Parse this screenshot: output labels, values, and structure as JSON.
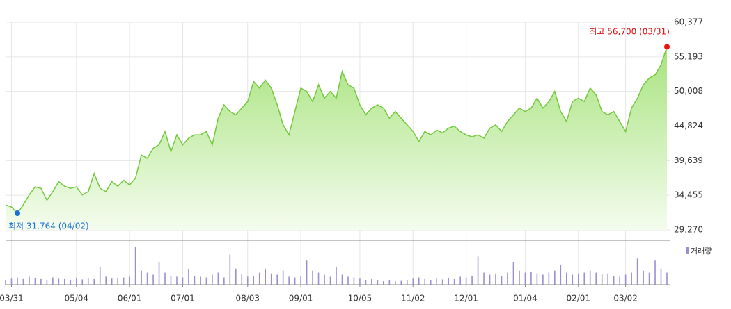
{
  "chart_data": {
    "type": "area",
    "values": [
      33000,
      32700,
      31764,
      33000,
      34500,
      35700,
      35500,
      33700,
      35000,
      36500,
      35800,
      35500,
      35700,
      34500,
      35000,
      37700,
      35500,
      35000,
      36500,
      35800,
      36700,
      36000,
      37000,
      40500,
      40000,
      41500,
      42000,
      44000,
      41000,
      43500,
      42000,
      43000,
      43500,
      43500,
      44000,
      42000,
      46000,
      48000,
      47000,
      46500,
      47500,
      48500,
      51500,
      50500,
      51700,
      50500,
      48000,
      45000,
      43500,
      47000,
      50500,
      50000,
      48500,
      51000,
      49000,
      50000,
      49000,
      53000,
      51000,
      50500,
      48000,
      46500,
      47500,
      48000,
      47500,
      46000,
      47000,
      46000,
      45000,
      44000,
      42500,
      44000,
      43500,
      44200,
      43800,
      44500,
      44800,
      44000,
      43500,
      43200,
      43500,
      43000,
      44500,
      45000,
      44000,
      45500,
      46500,
      47500,
      47000,
      47500,
      49000,
      47500,
      48500,
      50000,
      47000,
      45500,
      48500,
      49000,
      48500,
      50500,
      49500,
      47000,
      46500,
      47000,
      45500,
      44000,
      47500,
      49000,
      51000,
      52000,
      52500,
      54000,
      56700
    ],
    "color": "#72c93c",
    "ylim": [
      29270,
      60377
    ],
    "yticks": [
      {
        "value": 60377,
        "label": "60,377"
      },
      {
        "value": 55193,
        "label": "55,193"
      },
      {
        "value": 50008,
        "label": "50,008"
      },
      {
        "value": 44824,
        "label": "44,824"
      },
      {
        "value": 39639,
        "label": "39,639"
      },
      {
        "value": 34455,
        "label": "34,455"
      },
      {
        "value": 29270,
        "label": "29,270"
      }
    ],
    "xticks": [
      {
        "value": 1,
        "label": "03/31"
      },
      {
        "value": 12,
        "label": "05/04"
      },
      {
        "value": 21,
        "label": "06/01"
      },
      {
        "value": 30,
        "label": "07/01"
      },
      {
        "value": 41,
        "label": "08/03"
      },
      {
        "value": 50,
        "label": "09/01"
      },
      {
        "value": 60,
        "label": "10/05"
      },
      {
        "value": 69,
        "label": "11/02"
      },
      {
        "value": 78,
        "label": "12/01"
      },
      {
        "value": 88,
        "label": "01/04"
      },
      {
        "value": 97,
        "label": "02/01"
      },
      {
        "value": 105,
        "label": "03/02"
      }
    ],
    "high_label": "최고 56,700 (03/31)",
    "low_label": "최저 31,764 (04/02)",
    "volume": {
      "name": "거래량",
      "color": "#9a8fd0",
      "ylim": [
        0,
        100
      ],
      "values": [
        12,
        15,
        18,
        14,
        20,
        16,
        14,
        12,
        18,
        15,
        14,
        12,
        16,
        13,
        15,
        14,
        45,
        20,
        15,
        16,
        18,
        20,
        95,
        35,
        30,
        25,
        55,
        30,
        22,
        20,
        18,
        40,
        22,
        20,
        18,
        25,
        30,
        18,
        75,
        40,
        25,
        20,
        22,
        30,
        40,
        28,
        25,
        35,
        20,
        18,
        22,
        60,
        35,
        30,
        25,
        20,
        45,
        25,
        20,
        18,
        15,
        12,
        14,
        12,
        10,
        12,
        10,
        11,
        12,
        15,
        18,
        14,
        12,
        15,
        13,
        16,
        14,
        20,
        18,
        22,
        70,
        30,
        25,
        28,
        22,
        30,
        55,
        35,
        30,
        32,
        28,
        25,
        30,
        35,
        50,
        30,
        25,
        28,
        30,
        35,
        30,
        25,
        28,
        22,
        20,
        25,
        30,
        65,
        35,
        30,
        60,
        40,
        30
      ]
    },
    "grid": true
  }
}
